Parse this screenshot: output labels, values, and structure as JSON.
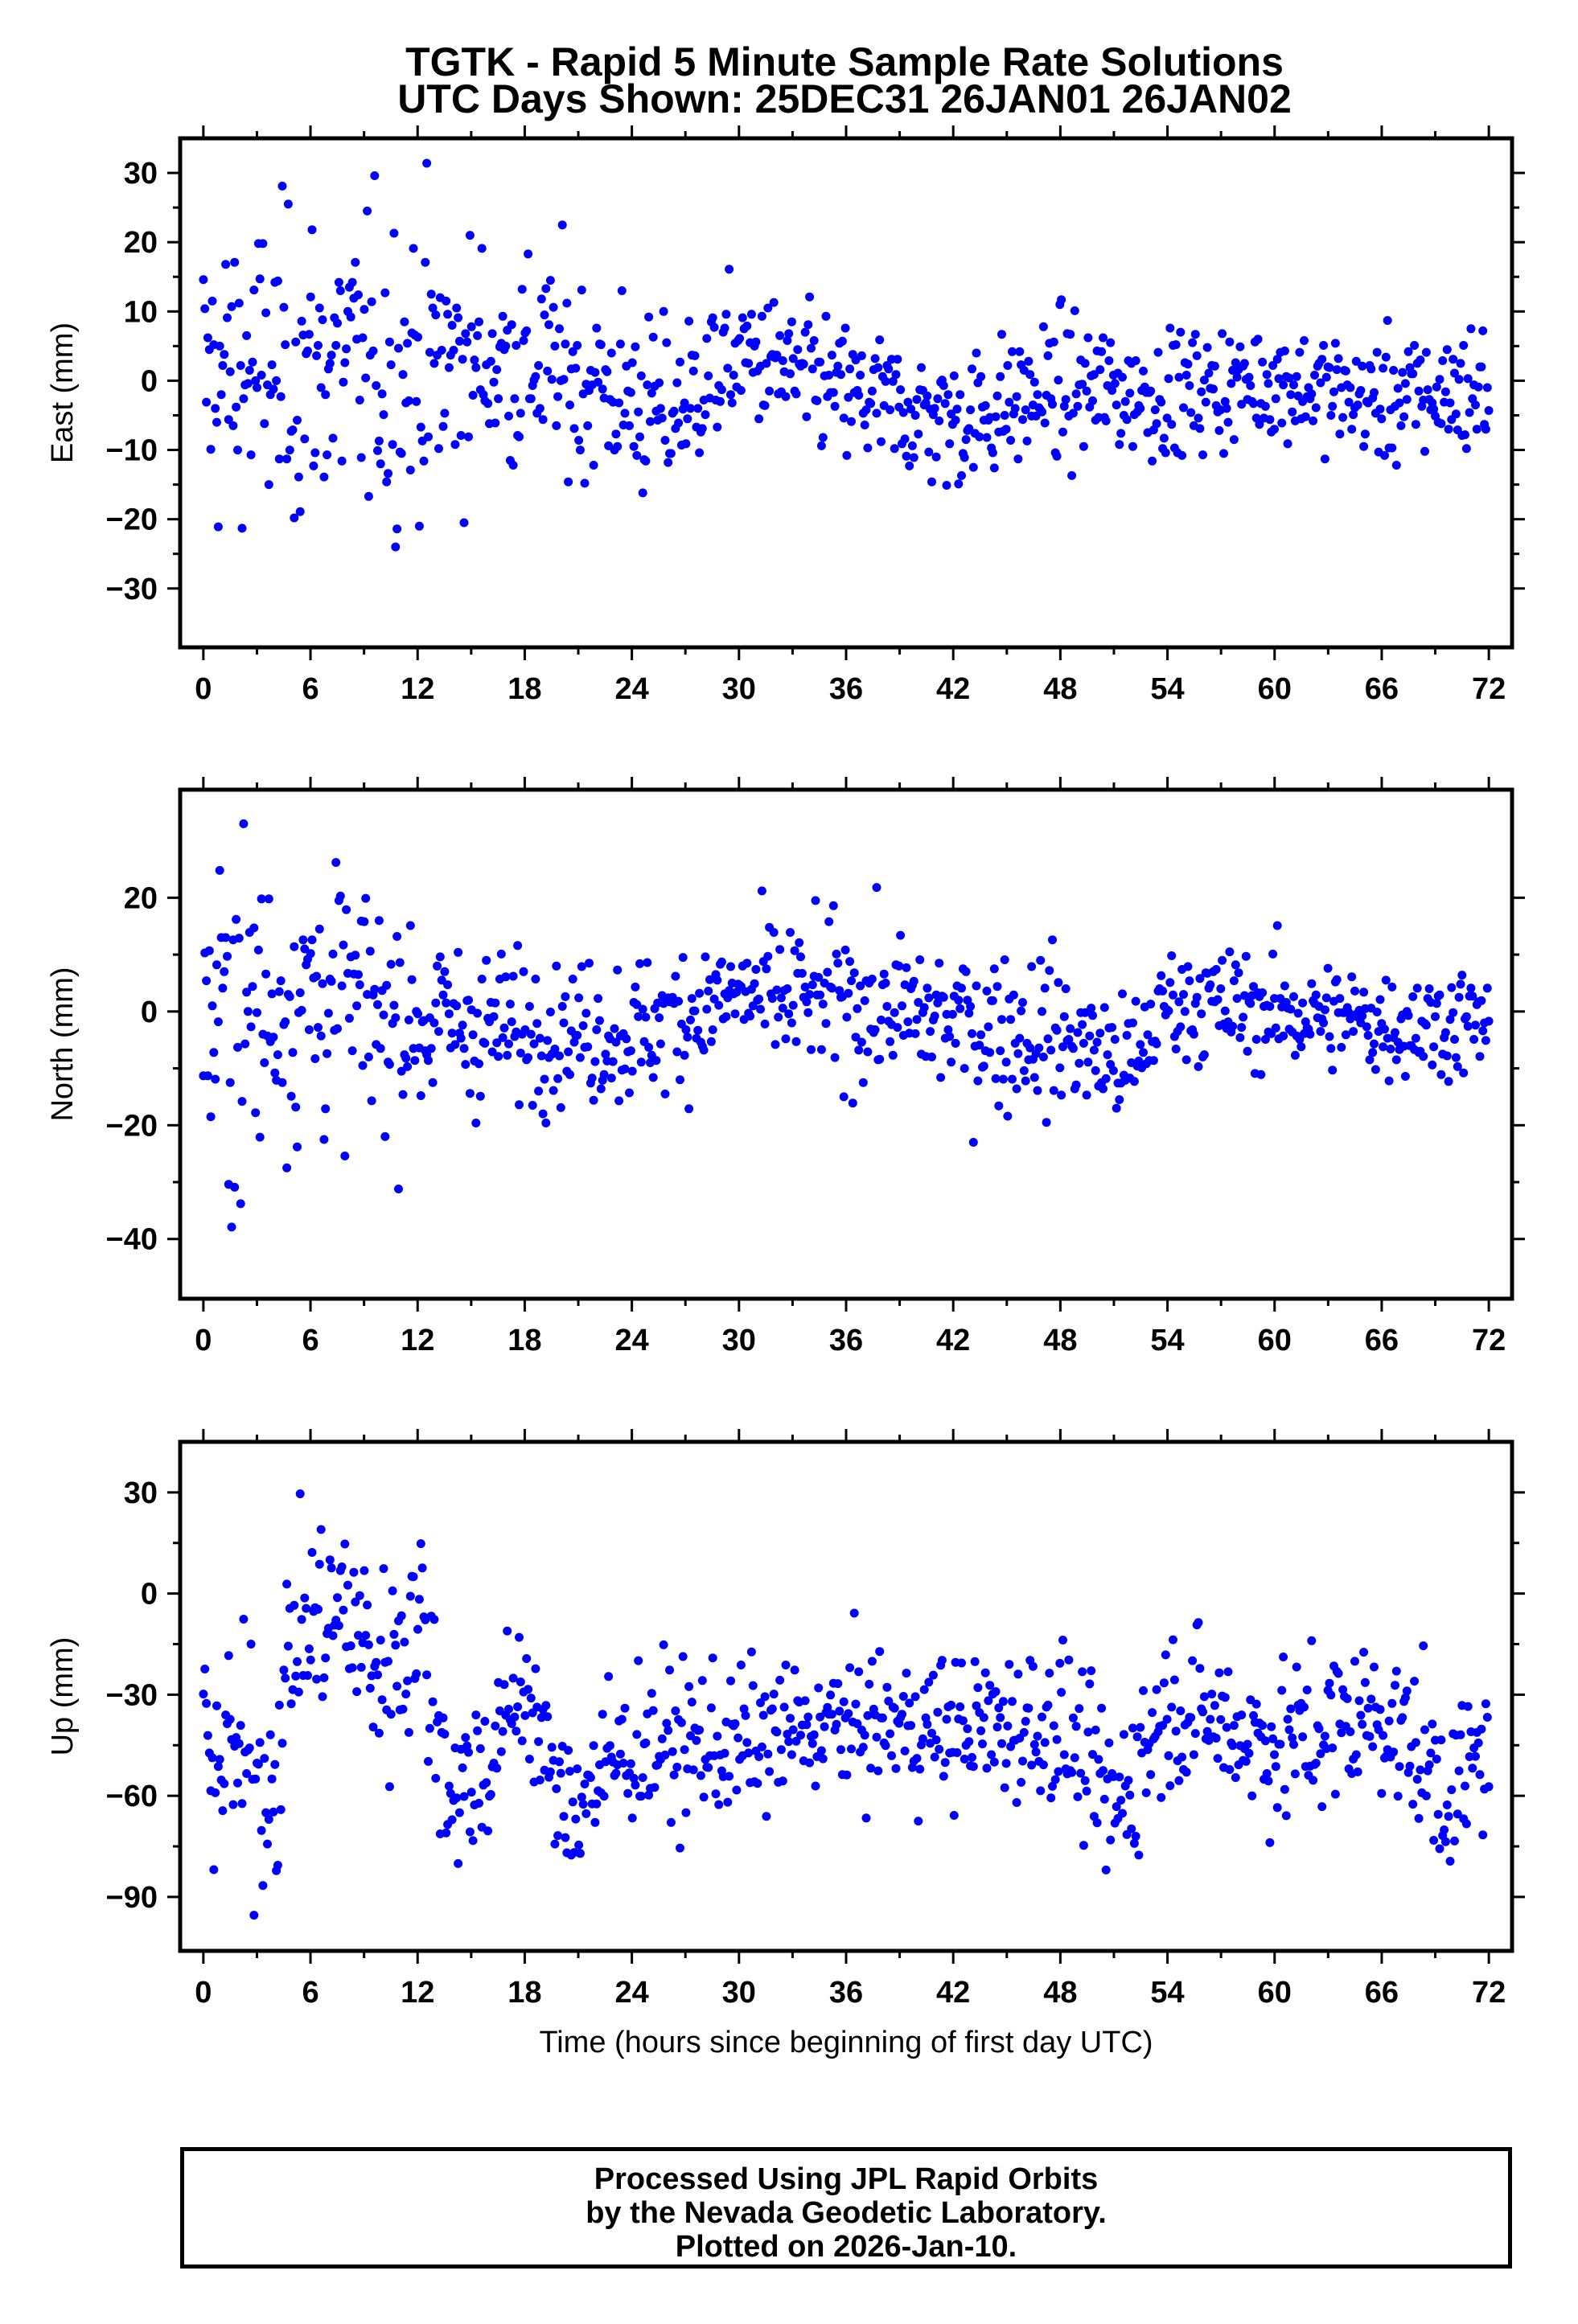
{
  "title": {
    "line1": "TGTK - Rapid 5 Minute Sample Rate Solutions",
    "line2": "UTC Days Shown:  25DEC31 26JAN01 26JAN02"
  },
  "footer": {
    "line1": "Processed Using JPL Rapid Orbits",
    "line2": "by the Nevada Geodetic Laboratory.",
    "line3": "Plotted on 2026-Jan-10."
  },
  "colors": {
    "points": "#0000ff",
    "axes": "#000000"
  },
  "chart_data": [
    {
      "type": "scatter",
      "ylabel": "East (mm)",
      "xlabel": "",
      "xlim": [
        -1.3,
        73.3
      ],
      "ylim": [
        -38.5,
        35
      ],
      "xticks": [
        0,
        6,
        12,
        18,
        24,
        30,
        36,
        42,
        48,
        54,
        60,
        66,
        72
      ],
      "yticks": [
        -30,
        -20,
        -10,
        0,
        10,
        20,
        30
      ],
      "grid": false,
      "series": [
        {
          "x": [],
          "y": []
        }
      ]
    },
    {
      "type": "scatter",
      "ylabel": "North (mm)",
      "xlabel": "",
      "xlim": [
        -1.3,
        73.3
      ],
      "ylim": [
        -50.5,
        39
      ],
      "xticks": [
        0,
        6,
        12,
        18,
        24,
        30,
        36,
        42,
        48,
        54,
        60,
        66,
        72
      ],
      "yticks": [
        -40,
        -20,
        0,
        20
      ],
      "grid": false,
      "series": [
        {
          "x": [],
          "y": []
        }
      ]
    },
    {
      "type": "scatter",
      "ylabel": "Up (mm)",
      "xlabel": "Time (hours since beginning of first day UTC)",
      "xlim": [
        -1.3,
        73.3
      ],
      "ylim": [
        -106,
        45
      ],
      "xticks": [
        0,
        6,
        12,
        18,
        24,
        30,
        36,
        42,
        48,
        54,
        60,
        66,
        72
      ],
      "yticks": [
        -90,
        -60,
        -30,
        0,
        30
      ],
      "grid": false,
      "series": [
        {
          "x": [],
          "y": []
        }
      ]
    }
  ]
}
